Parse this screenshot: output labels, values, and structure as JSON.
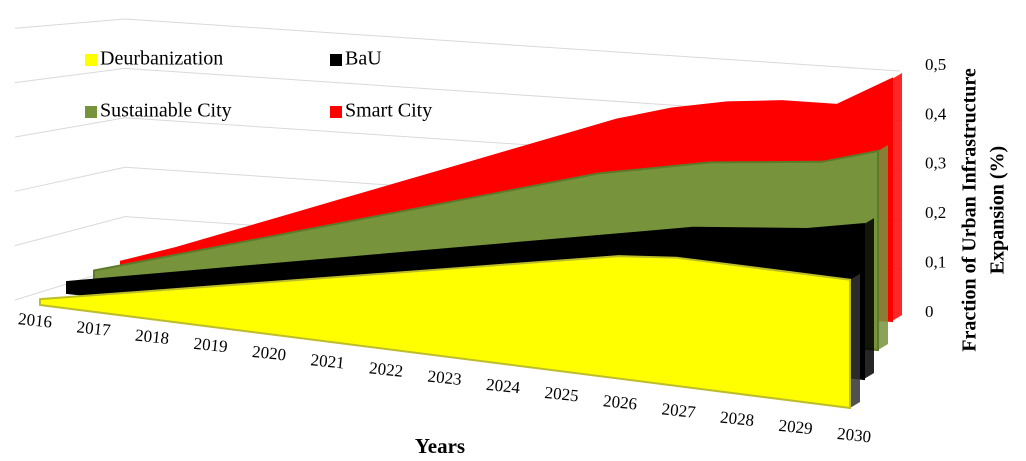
{
  "chart_data": {
    "type": "area3d",
    "x_label": "Years",
    "y_label": [
      "Fraction of Urban Infrastructure",
      "Expansion (%)"
    ],
    "categories": [
      "2016",
      "2017",
      "2018",
      "2019",
      "2020",
      "2021",
      "2022",
      "2023",
      "2024",
      "2025",
      "2026",
      "2027",
      "2028",
      "2029",
      "2030"
    ],
    "series": [
      {
        "name": "Deurbanization",
        "color": "#ffff00",
        "values": [
          0.01,
          0.03,
          0.05,
          0.07,
          0.09,
          0.11,
          0.13,
          0.15,
          0.17,
          0.19,
          0.21,
          0.22,
          0.22,
          0.22,
          0.22
        ]
      },
      {
        "name": "BaU",
        "color": "#000000",
        "values": [
          0.02,
          0.04,
          0.06,
          0.08,
          0.1,
          0.12,
          0.14,
          0.16,
          0.18,
          0.2,
          0.22,
          0.24,
          0.25,
          0.26,
          0.28
        ]
      },
      {
        "name": "Sustainable City",
        "color": "#77933c",
        "values": [
          0.02,
          0.05,
          0.08,
          0.11,
          0.14,
          0.17,
          0.2,
          0.23,
          0.26,
          0.29,
          0.31,
          0.33,
          0.34,
          0.35,
          0.38
        ]
      },
      {
        "name": "Smart City",
        "color": "#ff0000",
        "values": [
          0.015,
          0.05,
          0.09,
          0.13,
          0.17,
          0.21,
          0.25,
          0.29,
          0.33,
          0.37,
          0.4,
          0.42,
          0.43,
          0.43,
          0.49
        ]
      }
    ],
    "ylim": [
      0,
      0.5
    ],
    "yticks": [
      0,
      {
        "value": 0.1,
        "label": "0,1"
      },
      {
        "value": 0.2,
        "label": "0,2"
      },
      {
        "value": 0.3,
        "label": "0,3"
      },
      {
        "value": 0.4,
        "label": "0,4"
      },
      {
        "value": 0.5,
        "label": "0,5"
      }
    ],
    "grid": true
  }
}
